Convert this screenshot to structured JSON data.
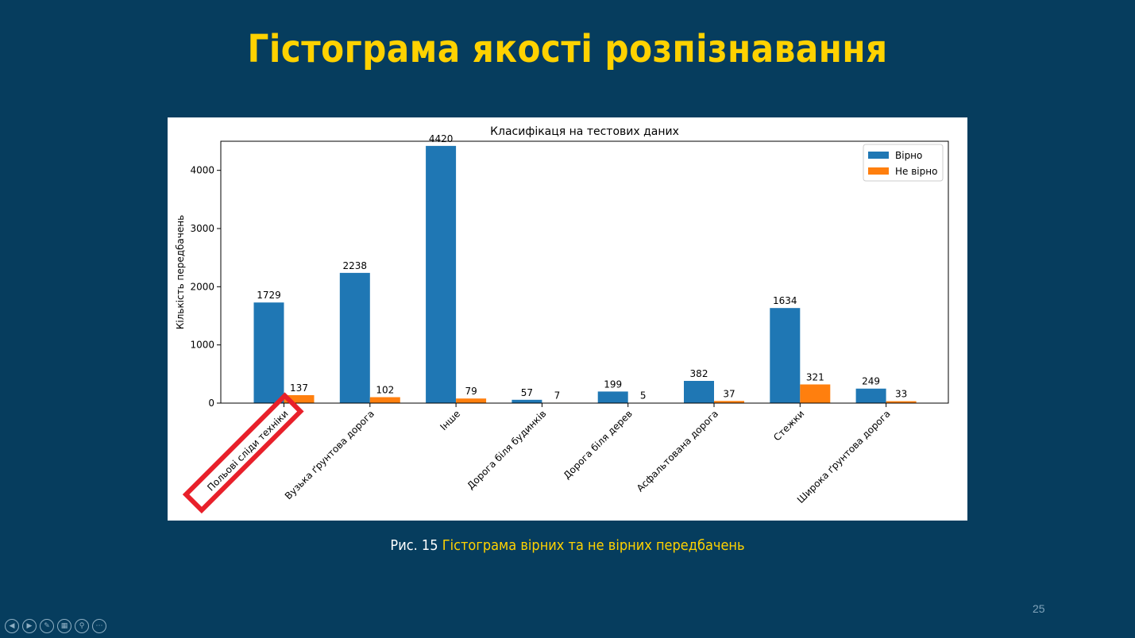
{
  "slide": {
    "title": "Гістограма якості розпізнавання",
    "caption_prefix": "Рис. 15",
    "caption_text": "Гістограма вірних та не вірних передбачень",
    "page_number": "25"
  },
  "toolbar": {
    "buttons": [
      {
        "name": "previous",
        "icon": "◀"
      },
      {
        "name": "next",
        "icon": "▶"
      },
      {
        "name": "pen",
        "icon": "✎"
      },
      {
        "name": "slides",
        "icon": "▦"
      },
      {
        "name": "zoom",
        "icon": "⚲"
      },
      {
        "name": "more",
        "icon": "⋯"
      }
    ]
  },
  "chart_data": {
    "type": "bar",
    "title": "Класифікаця на тестових даних",
    "xlabel": "",
    "ylabel": "Кількість передбачень",
    "ylim": [
      0,
      4500
    ],
    "yticks": [
      0,
      1000,
      2000,
      3000,
      4000
    ],
    "legend_position": "top-right",
    "categories": [
      "Польові сліди техніки",
      "Вузька ґрунтова дорога",
      "Інше",
      "Дорога біля будинків",
      "Дорога біля дерев",
      "Асфальтована дорога",
      "Стежки",
      "Широка ґрунтова дорога"
    ],
    "series": [
      {
        "name": "Вірно",
        "color": "#1f77b4",
        "values": [
          1729,
          2238,
          4420,
          57,
          199,
          382,
          1634,
          249
        ]
      },
      {
        "name": "Не вірно",
        "color": "#ff7f0e",
        "values": [
          137,
          102,
          79,
          7,
          5,
          37,
          321,
          33
        ]
      }
    ],
    "highlight_category_index": 0,
    "highlight_color": "#e8202a"
  }
}
